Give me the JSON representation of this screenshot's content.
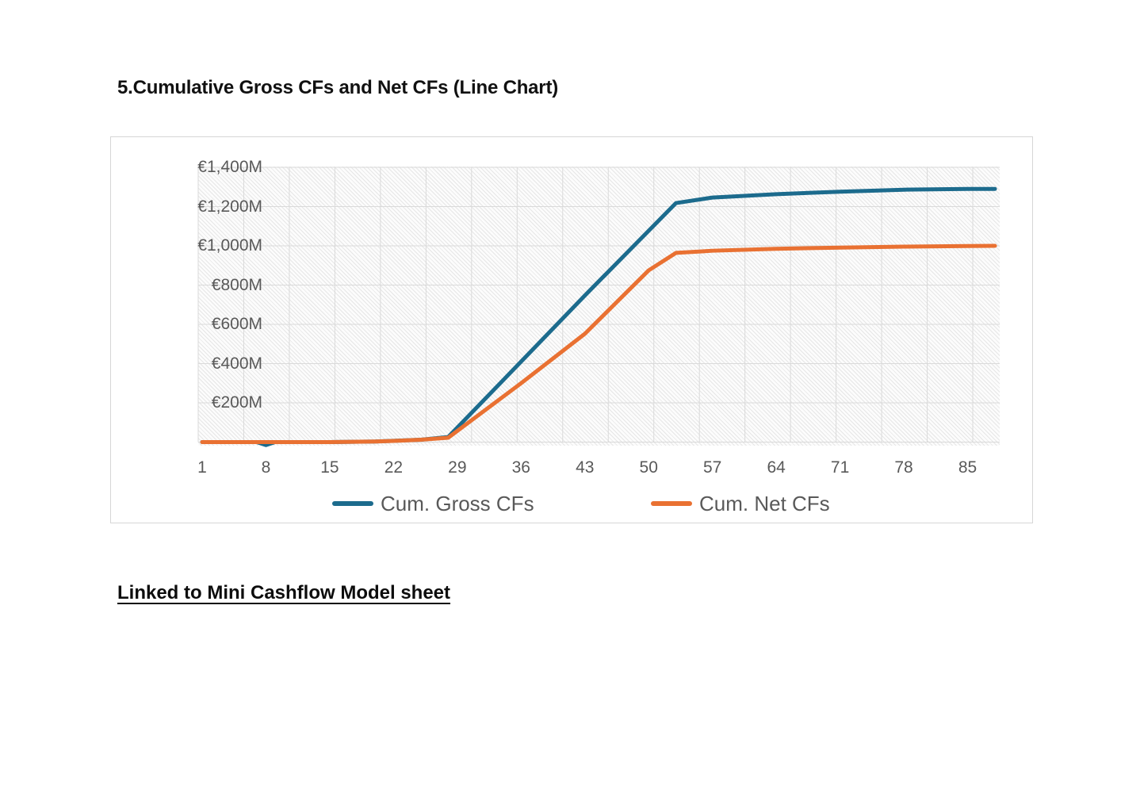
{
  "page": {
    "title": "5.Cumulative Gross CFs and Net CFs (Line Chart)",
    "footer_link": "Linked to Mini Cashflow Model sheet"
  },
  "chart_data": {
    "type": "line",
    "title": "",
    "xlabel": "",
    "ylabel": "",
    "currency": "EUR",
    "unit": "millions EUR",
    "grid": true,
    "legend_position": "bottom",
    "plot_area_pattern": "light-diagonal-hatch",
    "x_axis": {
      "tick_labels": [
        "1",
        "8",
        "15",
        "22",
        "29",
        "36",
        "43",
        "50",
        "57",
        "64",
        "71",
        "78",
        "85"
      ],
      "category_range": [
        1,
        88
      ]
    },
    "y_axis": {
      "min": 0,
      "max": 1400,
      "major_unit": 200,
      "tick_labels_top_down": [
        "€1,400M",
        "€1,200M",
        "€1,000M",
        "€800M",
        "€600M",
        "€400M",
        "€200M"
      ]
    },
    "series": [
      {
        "name": "Cum. Gross CFs",
        "color": "#1C6B8D",
        "x": [
          1,
          7,
          8,
          9,
          15,
          20,
          25,
          28,
          36,
          43,
          50,
          53,
          57,
          64,
          71,
          78,
          85,
          88
        ],
        "y": [
          0,
          0,
          -15,
          0,
          0,
          3,
          12,
          26,
          410,
          747,
          1077,
          1218,
          1246,
          1263,
          1276,
          1286,
          1290,
          1290
        ]
      },
      {
        "name": "Cum. Net CFs",
        "color": "#E97132",
        "x": [
          1,
          8,
          15,
          20,
          22,
          25,
          28,
          36,
          43,
          50,
          53,
          57,
          64,
          71,
          78,
          85,
          88
        ],
        "y": [
          0,
          0,
          0,
          3,
          6,
          12,
          22,
          300,
          552,
          875,
          964,
          975,
          985,
          991,
          996,
          999,
          1000
        ]
      }
    ]
  },
  "colors": {
    "gross_line": "#1C6B8D",
    "net_line": "#E97132",
    "axis_text": "#595959",
    "gridline": "#DADADA",
    "card_border": "#D6D6D6",
    "title_text": "#111111"
  }
}
